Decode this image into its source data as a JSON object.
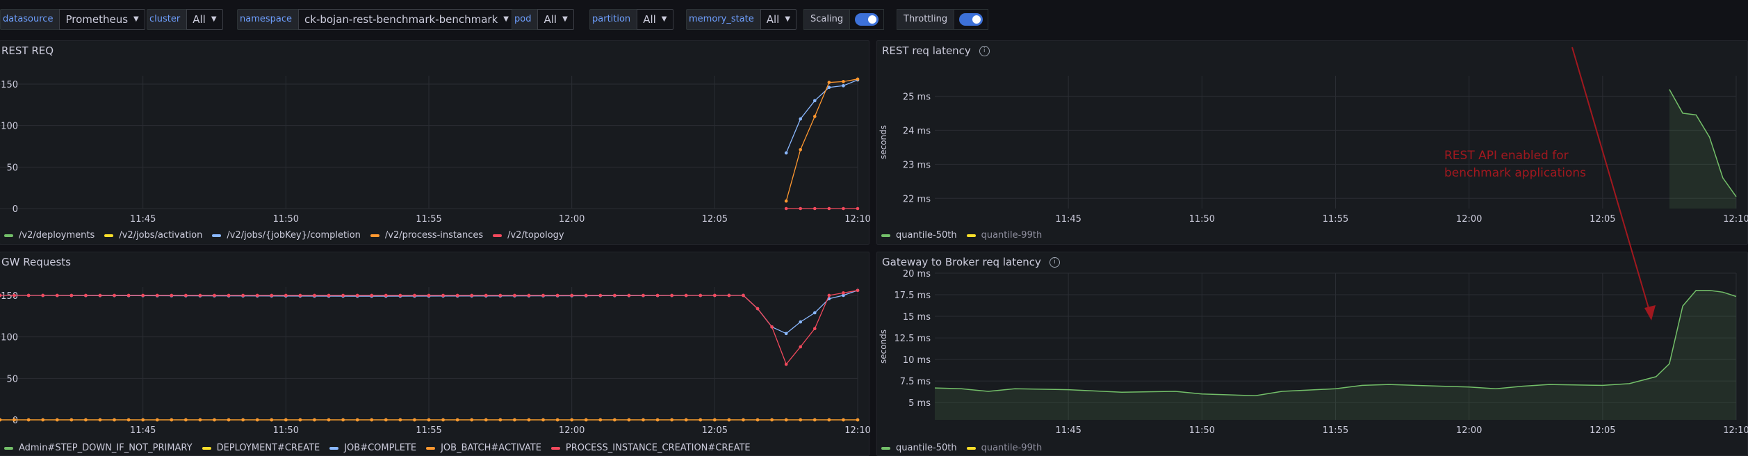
{
  "variables": {
    "datasource": {
      "label": "datasource",
      "value": "Prometheus"
    },
    "cluster": {
      "label": "cluster",
      "value": "All"
    },
    "namespace": {
      "label": "namespace",
      "value": "ck-bojan-rest-benchmark-benchmark"
    },
    "pod": {
      "label": "pod",
      "value": "All"
    },
    "partition": {
      "label": "partition",
      "value": "All"
    },
    "memory_state": {
      "label": "memory_state",
      "value": "All"
    },
    "scaling": {
      "label": "Scaling",
      "on": true
    },
    "throttling": {
      "label": "Throttling",
      "on": true
    }
  },
  "panels": {
    "rest_req": {
      "title": "REST REQ"
    },
    "gw_requests": {
      "title": "GW Requests"
    },
    "rest_latency": {
      "title": "REST req latency"
    },
    "gw_latency": {
      "title": "Gateway to Broker req latency"
    }
  },
  "annotation": {
    "line1": "REST API enabled for",
    "line2": "benchmark applications",
    "color": "#a1181f"
  },
  "colors": {
    "green": "#73bf69",
    "yellow": "#fade2a",
    "blue": "#8ab8ff",
    "orange": "#ff9830",
    "red": "#f2495c"
  },
  "chart_data": [
    {
      "type": "line",
      "title": "REST REQ",
      "x_ticks": [
        "11:45",
        "11:50",
        "11:55",
        "12:00",
        "12:05",
        "12:10"
      ],
      "x_range": [
        "11:40",
        "12:10"
      ],
      "ylim": [
        0,
        160
      ],
      "y_ticks": [
        "0",
        "50",
        "100",
        "150"
      ],
      "legend": "bottom",
      "series": [
        {
          "name": "/v2/deployments",
          "color": "#73bf69",
          "points": []
        },
        {
          "name": "/v2/jobs/activation",
          "color": "#fade2a",
          "points": []
        },
        {
          "name": "/v2/jobs/{jobKey}/completion",
          "color": "#8ab8ff",
          "points": [
            [
              "12:07:30",
              67
            ],
            [
              "12:08:00",
              108
            ],
            [
              "12:08:30",
              130
            ],
            [
              "12:09:00",
              146
            ],
            [
              "12:09:30",
              148
            ],
            [
              "12:10:00",
              155
            ]
          ]
        },
        {
          "name": "/v2/process-instances",
          "color": "#ff9830",
          "points": [
            [
              "12:07:30",
              9
            ],
            [
              "12:08:00",
              71
            ],
            [
              "12:08:30",
              111
            ],
            [
              "12:09:00",
              152
            ],
            [
              "12:09:30",
              153
            ],
            [
              "12:10:00",
              156
            ]
          ]
        },
        {
          "name": "/v2/topology",
          "color": "#f2495c",
          "points": [
            [
              "12:07:30",
              0
            ],
            [
              "12:08:00",
              0
            ],
            [
              "12:08:30",
              0
            ],
            [
              "12:09:00",
              0
            ],
            [
              "12:09:30",
              0
            ],
            [
              "12:10:00",
              0
            ]
          ]
        }
      ]
    },
    {
      "type": "line",
      "title": "GW Requests",
      "x_ticks": [
        "11:45",
        "11:50",
        "11:55",
        "12:00",
        "12:05",
        "12:10"
      ],
      "x_range": [
        "11:40",
        "12:10"
      ],
      "ylim": [
        0,
        160
      ],
      "y_ticks": [
        "0",
        "50",
        "100",
        "150"
      ],
      "legend": "bottom",
      "series": [
        {
          "name": "Admin#STEP_DOWN_IF_NOT_PRIMARY",
          "color": "#73bf69",
          "points": []
        },
        {
          "name": "DEPLOYMENT#CREATE",
          "color": "#fade2a",
          "points": [
            [
              "11:40:00",
              0
            ],
            [
              "12:10:00",
              0
            ]
          ]
        },
        {
          "name": "JOB#COMPLETE",
          "color": "#8ab8ff",
          "points": [
            [
              "11:40:00",
              150
            ],
            [
              "11:53:00",
              149
            ],
            [
              "12:06:00",
              150
            ],
            [
              "12:06:30",
              134
            ],
            [
              "12:07:00",
              112
            ],
            [
              "12:07:30",
              104
            ],
            [
              "12:08:00",
              118
            ],
            [
              "12:08:30",
              129
            ],
            [
              "12:09:00",
              146
            ],
            [
              "12:09:30",
              150
            ],
            [
              "12:10:00",
              156
            ]
          ]
        },
        {
          "name": "JOB_BATCH#ACTIVATE",
          "color": "#ff9830",
          "points": [
            [
              "11:40:00",
              0
            ],
            [
              "12:09:00",
              0
            ],
            [
              "12:10:00",
              0
            ]
          ]
        },
        {
          "name": "PROCESS_INSTANCE_CREATION#CREATE",
          "color": "#f2495c",
          "points": [
            [
              "11:40:00",
              150
            ],
            [
              "12:06:00",
              150
            ],
            [
              "12:06:30",
              134
            ],
            [
              "12:07:00",
              112
            ],
            [
              "12:07:30",
              67
            ],
            [
              "12:08:00",
              88
            ],
            [
              "12:08:30",
              110
            ],
            [
              "12:09:00",
              150
            ],
            [
              "12:09:30",
              153
            ],
            [
              "12:10:00",
              156
            ]
          ]
        }
      ]
    },
    {
      "type": "area",
      "title": "REST req latency",
      "ylabel": "seconds",
      "x_ticks": [
        "11:45",
        "11:50",
        "11:55",
        "12:00",
        "12:05",
        "12:10"
      ],
      "x_range": [
        "11:40",
        "12:10"
      ],
      "ylim": [
        21.7,
        25.6
      ],
      "y_ticks": [
        "22 ms",
        "23 ms",
        "24 ms",
        "25 ms"
      ],
      "legend": "bottom",
      "series": [
        {
          "name": "quantile-50th",
          "color": "#73bf69",
          "points": [
            [
              "12:07:30",
              25.2
            ],
            [
              "12:08:00",
              24.5
            ],
            [
              "12:08:30",
              24.45
            ],
            [
              "12:09:00",
              23.8
            ],
            [
              "12:09:30",
              22.6
            ],
            [
              "12:10:00",
              22.05
            ]
          ]
        },
        {
          "name": "quantile-99th",
          "color": "#fade2a",
          "points": []
        }
      ]
    },
    {
      "type": "area",
      "title": "Gateway to Broker req latency",
      "ylabel": "seconds",
      "x_ticks": [
        "11:45",
        "11:50",
        "11:55",
        "12:00",
        "12:05",
        "12:10"
      ],
      "x_range": [
        "11:40",
        "12:10"
      ],
      "ylim": [
        3.0,
        20.0
      ],
      "y_ticks": [
        "5 ms",
        "7.5 ms",
        "10 ms",
        "12.5 ms",
        "15 ms",
        "17.5 ms",
        "20 ms"
      ],
      "legend": "bottom",
      "series": [
        {
          "name": "quantile-50th",
          "color": "#73bf69",
          "points": [
            [
              "11:40:00",
              6.7
            ],
            [
              "11:41:00",
              6.6
            ],
            [
              "11:42:00",
              6.3
            ],
            [
              "11:43:00",
              6.6
            ],
            [
              "11:45:00",
              6.5
            ],
            [
              "11:47:00",
              6.2
            ],
            [
              "11:49:00",
              6.3
            ],
            [
              "11:50:00",
              6.0
            ],
            [
              "11:51:00",
              5.9
            ],
            [
              "11:52:00",
              5.8
            ],
            [
              "11:53:00",
              6.3
            ],
            [
              "11:55:00",
              6.6
            ],
            [
              "11:56:00",
              7.0
            ],
            [
              "11:57:00",
              7.1
            ],
            [
              "11:59:00",
              6.9
            ],
            [
              "12:00:00",
              6.8
            ],
            [
              "12:01:00",
              6.6
            ],
            [
              "12:02:00",
              6.9
            ],
            [
              "12:03:00",
              7.1
            ],
            [
              "12:05:00",
              7.0
            ],
            [
              "12:06:00",
              7.2
            ],
            [
              "12:07:00",
              8.0
            ],
            [
              "12:07:30",
              9.5
            ],
            [
              "12:08:00",
              16.2
            ],
            [
              "12:08:30",
              18.0
            ],
            [
              "12:09:00",
              18.0
            ],
            [
              "12:09:30",
              17.8
            ],
            [
              "12:10:00",
              17.3
            ]
          ]
        },
        {
          "name": "quantile-99th",
          "color": "#fade2a",
          "points": []
        }
      ]
    }
  ]
}
